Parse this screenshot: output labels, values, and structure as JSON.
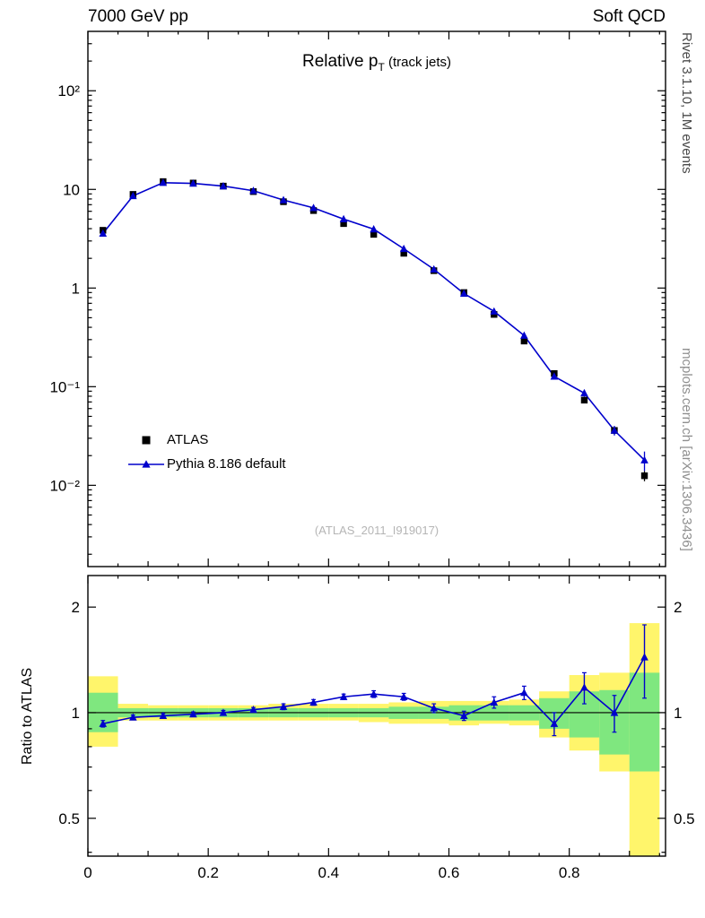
{
  "colors": {
    "atlas": "#000000",
    "pythia": "#0000cc",
    "band_yellow": "#fff56b",
    "band_green": "#7fe77f",
    "unity_line": "#000000",
    "watermark": "#b5b5b5",
    "rivet_text": "#4a4a4a",
    "mcplots_text": "#8f8f8f"
  },
  "header": {
    "left": "7000 GeV pp",
    "right": "Soft QCD"
  },
  "side_notes": {
    "top": "Rivet 3.1.10,  1M events",
    "bottom": "mcplots.cern.ch [arXiv:1306.3436]"
  },
  "main_panel": {
    "title_lead": "Relative p",
    "title_sub": "T",
    "title_tail": " (track jets)",
    "watermark": "(ATLAS_2011_I919017)"
  },
  "legend": [
    {
      "label": "ATLAS"
    },
    {
      "label": "Pythia 8.186 default"
    }
  ],
  "ratio_panel": {
    "ylabel": "Ratio to ATLAS"
  },
  "chart_data": [
    {
      "type": "line",
      "panel": "main",
      "title": "Relative pT (track jets)",
      "xlim": [
        0,
        0.96
      ],
      "ylog": true,
      "ylim": [
        0.0015,
        400
      ],
      "yticks": [
        100,
        10,
        1,
        0.1,
        0.01
      ],
      "ytick_labels": [
        "10²",
        "10",
        "1",
        "10⁻¹",
        "10⁻²"
      ],
      "bin_width": 0.05,
      "x": [
        0.025,
        0.075,
        0.125,
        0.175,
        0.225,
        0.275,
        0.325,
        0.375,
        0.425,
        0.475,
        0.525,
        0.575,
        0.625,
        0.675,
        0.725,
        0.775,
        0.825,
        0.875,
        0.925
      ],
      "series": [
        {
          "name": "ATLAS",
          "marker": "square",
          "color": "#000000",
          "values": [
            3.85,
            8.9,
            12.0,
            11.6,
            10.8,
            9.5,
            7.5,
            6.1,
            4.5,
            3.5,
            2.25,
            1.5,
            0.9,
            0.54,
            0.29,
            0.136,
            0.073,
            0.036,
            0.0125
          ],
          "errors": [
            0.1,
            0.15,
            0.2,
            0.2,
            0.18,
            0.16,
            0.13,
            0.1,
            0.08,
            0.06,
            0.05,
            0.035,
            0.022,
            0.015,
            0.01,
            0.006,
            0.004,
            0.003,
            0.0015
          ]
        },
        {
          "name": "Pythia 8.186 default",
          "marker": "triangle",
          "color": "#0000cc",
          "line": true,
          "values": [
            3.58,
            8.6,
            11.7,
            11.5,
            10.8,
            9.7,
            7.8,
            6.5,
            5.0,
            3.95,
            2.5,
            1.55,
            0.88,
            0.58,
            0.33,
            0.127,
            0.086,
            0.036,
            0.018
          ],
          "errors": [
            0.05,
            0.08,
            0.1,
            0.1,
            0.1,
            0.09,
            0.08,
            0.07,
            0.06,
            0.05,
            0.04,
            0.03,
            0.02,
            0.015,
            0.012,
            0.008,
            0.007,
            0.004,
            0.004
          ]
        }
      ]
    },
    {
      "type": "line",
      "panel": "ratio",
      "ylabel": "Ratio to ATLAS",
      "ylog": true,
      "ylim": [
        0.39,
        2.46
      ],
      "yticks": [
        2,
        1,
        0.5
      ],
      "ytick_labels": [
        "2",
        "1",
        "0.5"
      ],
      "xticks": [
        0,
        0.2,
        0.4,
        0.6,
        0.8
      ],
      "xtick_labels": [
        "0",
        "0.2",
        "0.4",
        "0.6",
        "0.8"
      ],
      "x": [
        0.025,
        0.075,
        0.125,
        0.175,
        0.225,
        0.275,
        0.325,
        0.375,
        0.425,
        0.475,
        0.525,
        0.575,
        0.625,
        0.675,
        0.725,
        0.775,
        0.825,
        0.875,
        0.925
      ],
      "values": [
        0.93,
        0.97,
        0.98,
        0.99,
        1.0,
        1.02,
        1.04,
        1.07,
        1.11,
        1.13,
        1.11,
        1.03,
        0.98,
        1.07,
        1.14,
        0.93,
        1.18,
        1.0,
        1.44
      ],
      "errors": [
        0.02,
        0.015,
        0.015,
        0.015,
        0.015,
        0.015,
        0.02,
        0.02,
        0.02,
        0.025,
        0.025,
        0.03,
        0.03,
        0.04,
        0.05,
        0.07,
        0.12,
        0.12,
        0.34
      ],
      "bands": {
        "yellow_color": "#fff56b",
        "green_color": "#7fe77f",
        "yellow": [
          [
            0.8,
            1.27
          ],
          [
            0.95,
            1.06
          ],
          [
            0.95,
            1.05
          ],
          [
            0.95,
            1.05
          ],
          [
            0.95,
            1.05
          ],
          [
            0.95,
            1.05
          ],
          [
            0.95,
            1.06
          ],
          [
            0.95,
            1.06
          ],
          [
            0.95,
            1.06
          ],
          [
            0.94,
            1.06
          ],
          [
            0.93,
            1.07
          ],
          [
            0.93,
            1.08
          ],
          [
            0.92,
            1.08
          ],
          [
            0.93,
            1.08
          ],
          [
            0.92,
            1.09
          ],
          [
            0.85,
            1.15
          ],
          [
            0.78,
            1.28
          ],
          [
            0.68,
            1.3
          ],
          [
            0.35,
            1.8
          ]
        ],
        "green": [
          [
            0.88,
            1.14
          ],
          [
            0.97,
            1.03
          ],
          [
            0.97,
            1.03
          ],
          [
            0.97,
            1.03
          ],
          [
            0.97,
            1.03
          ],
          [
            0.97,
            1.03
          ],
          [
            0.97,
            1.03
          ],
          [
            0.97,
            1.03
          ],
          [
            0.97,
            1.03
          ],
          [
            0.97,
            1.03
          ],
          [
            0.96,
            1.04
          ],
          [
            0.96,
            1.04
          ],
          [
            0.95,
            1.05
          ],
          [
            0.95,
            1.05
          ],
          [
            0.95,
            1.05
          ],
          [
            0.9,
            1.1
          ],
          [
            0.85,
            1.15
          ],
          [
            0.76,
            1.16
          ],
          [
            0.68,
            1.3
          ]
        ]
      }
    }
  ]
}
